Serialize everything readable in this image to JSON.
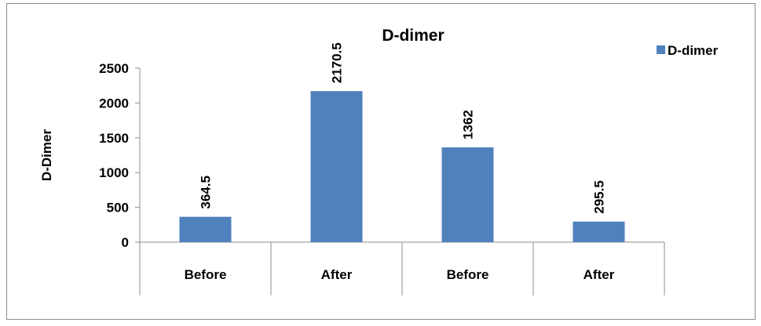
{
  "chart_data": {
    "type": "bar",
    "title": "D-dimer",
    "xlabel": "",
    "ylabel": "D-Dimer",
    "categories": [
      "Before",
      "After",
      "Before",
      "After"
    ],
    "series": [
      {
        "name": "D-dimer",
        "values": [
          364.5,
          2170.5,
          1362,
          295.5
        ],
        "color": "#4f81bd"
      }
    ],
    "data_labels": [
      "364.5",
      "2170.5",
      "1362",
      "295.5"
    ],
    "ylim": [
      0,
      2500
    ],
    "yticks": [
      0,
      500,
      1000,
      1500,
      2000,
      2500
    ],
    "grid": false,
    "legend_position": "top-right"
  }
}
